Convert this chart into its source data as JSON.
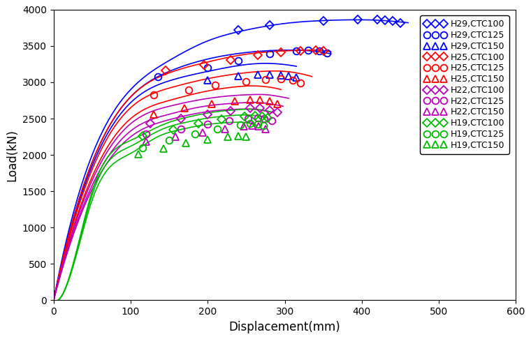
{
  "title": "",
  "xlabel": "Displacement(mm)",
  "ylabel": "Load(kN)",
  "xlim": [
    0,
    600
  ],
  "ylim": [
    0,
    4000
  ],
  "xticks": [
    0,
    100,
    200,
    300,
    400,
    500,
    600
  ],
  "yticks": [
    0,
    500,
    1000,
    1500,
    2000,
    2500,
    3000,
    3500,
    4000
  ],
  "series": [
    {
      "label": "H29,CTC100",
      "color": "#0000FF",
      "marker": "D",
      "curve_x": [
        0,
        50,
        100,
        150,
        200,
        250,
        300,
        350,
        400,
        420,
        440,
        460
      ],
      "curve_y": [
        0,
        2000,
        2900,
        3300,
        3570,
        3720,
        3810,
        3850,
        3860,
        3855,
        3840,
        3820
      ],
      "scatter_x": [
        240,
        280,
        350,
        395,
        420,
        430,
        440,
        450
      ],
      "scatter_y": [
        3720,
        3790,
        3840,
        3860,
        3860,
        3850,
        3840,
        3820
      ]
    },
    {
      "label": "H29,CTC125",
      "color": "#0000FF",
      "marker": "o",
      "curve_x": [
        0,
        50,
        100,
        150,
        200,
        250,
        290,
        320,
        345,
        360
      ],
      "curve_y": [
        0,
        1900,
        2800,
        3150,
        3320,
        3410,
        3440,
        3440,
        3420,
        3390
      ],
      "scatter_x": [
        135,
        200,
        240,
        280,
        315,
        330,
        345,
        355
      ],
      "scatter_y": [
        3080,
        3200,
        3300,
        3390,
        3430,
        3440,
        3430,
        3400
      ]
    },
    {
      "label": "H29,CTC150",
      "color": "#0000FF",
      "marker": "^",
      "curve_x": [
        0,
        50,
        100,
        150,
        200,
        240,
        270,
        295,
        315
      ],
      "curve_y": [
        0,
        1850,
        2720,
        3020,
        3150,
        3230,
        3260,
        3250,
        3220
      ],
      "scatter_x": [
        200,
        240,
        265,
        280,
        295,
        305,
        315
      ],
      "scatter_y": [
        3030,
        3090,
        3110,
        3110,
        3100,
        3090,
        3070
      ]
    },
    {
      "label": "H25,CTC100",
      "color": "#FF0000",
      "marker": "D",
      "curve_x": [
        0,
        50,
        100,
        150,
        200,
        240,
        280,
        320,
        345,
        360
      ],
      "curve_y": [
        0,
        1900,
        2800,
        3130,
        3280,
        3370,
        3420,
        3440,
        3440,
        3420
      ],
      "scatter_x": [
        145,
        195,
        230,
        265,
        295,
        320,
        340,
        350
      ],
      "scatter_y": [
        3160,
        3240,
        3310,
        3370,
        3410,
        3430,
        3440,
        3430
      ]
    },
    {
      "label": "H25,CTC125",
      "color": "#FF0000",
      "marker": "o",
      "curve_x": [
        0,
        50,
        100,
        150,
        200,
        240,
        270,
        300,
        320,
        335
      ],
      "curve_y": [
        0,
        1800,
        2650,
        2920,
        3050,
        3120,
        3150,
        3150,
        3120,
        3080
      ],
      "scatter_x": [
        130,
        175,
        210,
        250,
        275,
        295,
        310,
        320
      ],
      "scatter_y": [
        2830,
        2890,
        2960,
        3010,
        3040,
        3050,
        3030,
        2990
      ]
    },
    {
      "label": "H25,CTC150",
      "color": "#FF0000",
      "marker": "^",
      "curve_x": [
        0,
        50,
        100,
        150,
        195,
        230,
        255,
        275,
        295
      ],
      "curve_y": [
        0,
        1700,
        2500,
        2750,
        2870,
        2930,
        2950,
        2940,
        2900
      ],
      "scatter_x": [
        130,
        170,
        205,
        235,
        255,
        268,
        280,
        290
      ],
      "scatter_y": [
        2560,
        2640,
        2700,
        2740,
        2760,
        2760,
        2740,
        2700
      ]
    },
    {
      "label": "H22,CTC100",
      "color": "#BB00BB",
      "marker": "D",
      "curve_x": [
        0,
        50,
        100,
        150,
        190,
        225,
        255,
        275,
        290,
        305
      ],
      "curve_y": [
        0,
        1650,
        2430,
        2670,
        2760,
        2810,
        2830,
        2830,
        2810,
        2780
      ],
      "scatter_x": [
        125,
        165,
        200,
        230,
        255,
        268,
        280,
        290
      ],
      "scatter_y": [
        2430,
        2500,
        2560,
        2610,
        2640,
        2640,
        2620,
        2590
      ]
    },
    {
      "label": "H22,CTC125",
      "color": "#BB00BB",
      "marker": "o",
      "curve_x": [
        0,
        50,
        100,
        150,
        185,
        220,
        248,
        268,
        283,
        298
      ],
      "curve_y": [
        0,
        1580,
        2330,
        2560,
        2650,
        2700,
        2720,
        2720,
        2700,
        2670
      ],
      "scatter_x": [
        120,
        165,
        200,
        228,
        252,
        265,
        273,
        283
      ],
      "scatter_y": [
        2290,
        2360,
        2420,
        2470,
        2500,
        2510,
        2500,
        2470
      ]
    },
    {
      "label": "H22,CTC150",
      "color": "#BB00BB",
      "marker": "^",
      "curve_x": [
        0,
        50,
        100,
        145,
        180,
        210,
        238,
        258,
        272,
        286
      ],
      "curve_y": [
        0,
        1530,
        2250,
        2470,
        2560,
        2610,
        2630,
        2630,
        2610,
        2580
      ],
      "scatter_x": [
        120,
        158,
        193,
        222,
        247,
        258,
        266,
        275
      ],
      "scatter_y": [
        2180,
        2250,
        2310,
        2360,
        2390,
        2400,
        2390,
        2360
      ]
    },
    {
      "label": "H19,CTC100",
      "color": "#00BB00",
      "marker": "D",
      "curve_x": [
        0,
        10,
        50,
        100,
        145,
        178,
        208,
        235,
        255,
        270,
        283
      ],
      "curve_y": [
        0,
        50,
        1500,
        2200,
        2430,
        2530,
        2590,
        2620,
        2630,
        2620,
        2590
      ],
      "scatter_x": [
        115,
        155,
        188,
        218,
        248,
        261,
        270,
        278
      ],
      "scatter_y": [
        2260,
        2350,
        2430,
        2490,
        2530,
        2540,
        2530,
        2510
      ]
    },
    {
      "label": "H19,CTC125",
      "color": "#00BB00",
      "marker": "o",
      "curve_x": [
        0,
        10,
        50,
        100,
        140,
        172,
        202,
        228,
        248,
        263,
        276
      ],
      "curve_y": [
        0,
        50,
        1450,
        2120,
        2350,
        2450,
        2510,
        2540,
        2550,
        2540,
        2510
      ],
      "scatter_x": [
        115,
        150,
        183,
        212,
        242,
        255,
        265,
        272
      ],
      "scatter_y": [
        2100,
        2200,
        2290,
        2360,
        2410,
        2430,
        2420,
        2400
      ]
    },
    {
      "label": "H19,CTC150",
      "color": "#00BB00",
      "marker": "^",
      "curve_x": [
        0,
        10,
        50,
        100,
        135,
        165,
        193,
        218,
        238,
        252,
        263
      ],
      "curve_y": [
        0,
        50,
        1380,
        2020,
        2250,
        2350,
        2410,
        2440,
        2450,
        2440,
        2410
      ],
      "scatter_x": [
        110,
        143,
        172,
        200,
        226,
        240,
        250
      ],
      "scatter_y": [
        2010,
        2090,
        2160,
        2210,
        2250,
        2260,
        2250
      ]
    }
  ],
  "background_color": "#FFFFFF",
  "legend_fontsize": 9,
  "axis_fontsize": 12,
  "tick_fontsize": 10
}
